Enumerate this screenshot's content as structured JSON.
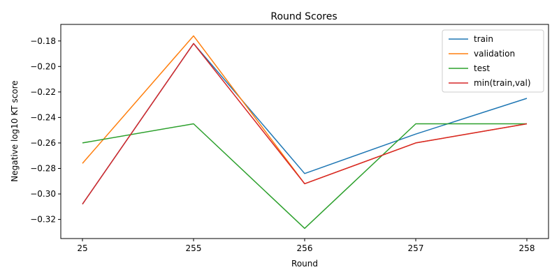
{
  "chart_data": {
    "type": "line",
    "title": "Round Scores",
    "xlabel": "Round",
    "ylabel": "Negative log10 KT score",
    "categories": [
      "25",
      "255",
      "256",
      "257",
      "258"
    ],
    "ylim": [
      -0.335,
      -0.167
    ],
    "yticks": [
      -0.32,
      -0.3,
      -0.28,
      -0.26,
      -0.24,
      -0.22,
      -0.2,
      -0.18
    ],
    "ytick_labels": [
      "−0.32",
      "−0.30",
      "−0.28",
      "−0.26",
      "−0.24",
      "−0.22",
      "−0.20",
      "−0.18"
    ],
    "grid": false,
    "legend_position": "top-right",
    "series": [
      {
        "name": "train",
        "color": "#1f77b4",
        "values": [
          -0.308,
          -0.182,
          -0.284,
          -0.253,
          -0.225
        ]
      },
      {
        "name": "validation",
        "color": "#ff7f0e",
        "values": [
          -0.276,
          -0.176,
          -0.292,
          -0.26,
          -0.245
        ]
      },
      {
        "name": "test",
        "color": "#2ca02c",
        "values": [
          -0.26,
          -0.245,
          -0.327,
          -0.245,
          -0.245
        ]
      },
      {
        "name": "min(train,val)",
        "color": "#d62728",
        "values": [
          -0.308,
          -0.182,
          -0.292,
          -0.26,
          -0.245
        ]
      }
    ]
  }
}
